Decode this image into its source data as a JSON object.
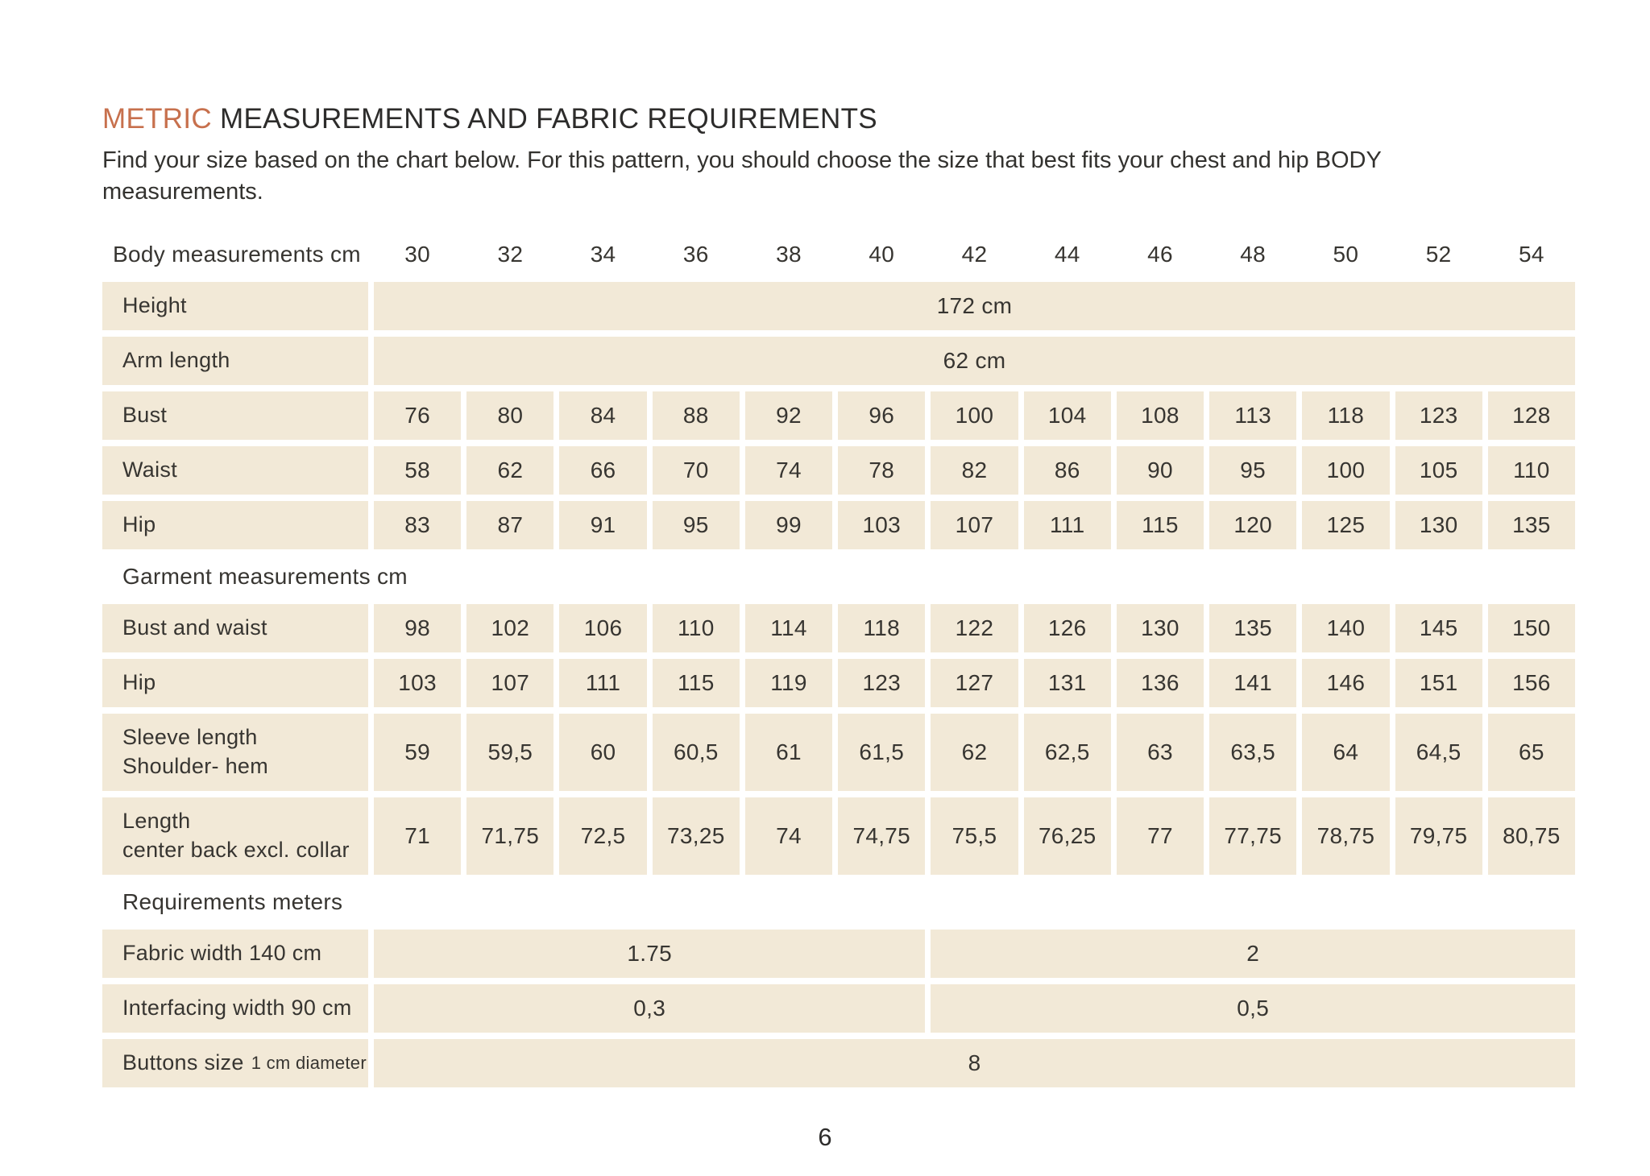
{
  "page": {
    "title_accent": "METRIC",
    "title_rest": " MEASUREMENTS AND FABRIC REQUIREMENTS",
    "subtitle": "Find your size based on the chart below. For this pattern, you should choose the size that best fits your chest and hip BODY measurements.",
    "page_number": "6"
  },
  "colors": {
    "accent_orange": "#c7704d",
    "cell_beige": "#f2e9d7",
    "text_dark": "#2e2d2c"
  },
  "table": {
    "header_label": "Body measurements cm",
    "sizes": [
      "30",
      "32",
      "34",
      "36",
      "38",
      "40",
      "42",
      "44",
      "46",
      "48",
      "50",
      "52",
      "54"
    ],
    "sections": [
      {
        "id": "body",
        "rows": [
          {
            "label": "Height",
            "span_value": "172 cm"
          },
          {
            "label": "Arm length",
            "span_value": "62 cm"
          },
          {
            "label": "Bust",
            "values": [
              "76",
              "80",
              "84",
              "88",
              "92",
              "96",
              "100",
              "104",
              "108",
              "113",
              "118",
              "123",
              "128"
            ]
          },
          {
            "label": "Waist",
            "values": [
              "58",
              "62",
              "66",
              "70",
              "74",
              "78",
              "82",
              "86",
              "90",
              "95",
              "100",
              "105",
              "110"
            ]
          },
          {
            "label": "Hip",
            "values": [
              "83",
              "87",
              "91",
              "95",
              "99",
              "103",
              "107",
              "111",
              "115",
              "120",
              "125",
              "130",
              "135"
            ]
          }
        ]
      },
      {
        "id": "garment",
        "heading": "Garment measurements cm",
        "rows": [
          {
            "label": "Bust and waist",
            "values": [
              "98",
              "102",
              "106",
              "110",
              "114",
              "118",
              "122",
              "126",
              "130",
              "135",
              "140",
              "145",
              "150"
            ]
          },
          {
            "label": "Hip",
            "values": [
              "103",
              "107",
              "111",
              "115",
              "119",
              "123",
              "127",
              "131",
              "136",
              "141",
              "146",
              "151",
              "156"
            ]
          },
          {
            "label": "Sleeve length",
            "label2": "Shoulder- hem",
            "tall": true,
            "values": [
              "59",
              "59,5",
              "60",
              "60,5",
              "61",
              "61,5",
              "62",
              "62,5",
              "63",
              "63,5",
              "64",
              "64,5",
              "65"
            ]
          },
          {
            "label": "Length",
            "label2": "center back excl. collar",
            "tall": true,
            "values": [
              "71",
              "71,75",
              "72,5",
              "73,25",
              "74",
              "74,75",
              "75,5",
              "76,25",
              "77",
              "77,75",
              "78,75",
              "79,75",
              "80,75"
            ]
          }
        ]
      },
      {
        "id": "requirements",
        "heading": "Requirements meters",
        "rows": [
          {
            "label": "Fabric width 140 cm",
            "split_values": [
              "1.75",
              "2"
            ],
            "split_spans": [
              6,
              7
            ]
          },
          {
            "label": "Interfacing width 90 cm",
            "split_values": [
              "0,3",
              "0,5"
            ],
            "split_spans": [
              6,
              7
            ]
          },
          {
            "label": "Buttons size",
            "label_small": "1 cm diameter",
            "span_value": "8"
          }
        ]
      }
    ]
  }
}
